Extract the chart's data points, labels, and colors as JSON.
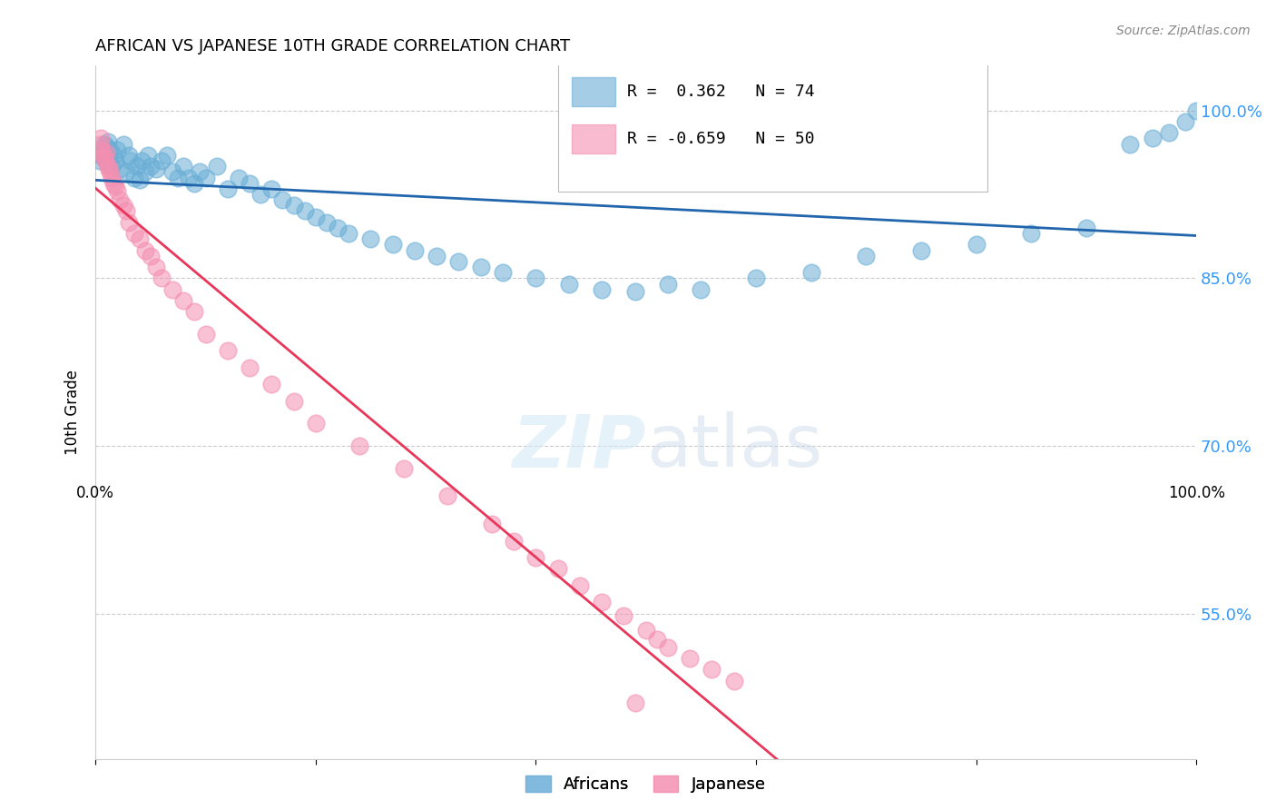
{
  "title": "AFRICAN VS JAPANESE 10TH GRADE CORRELATION CHART",
  "source": "Source: ZipAtlas.com",
  "ylabel": "10th Grade",
  "xlim": [
    0.0,
    1.0
  ],
  "ylim": [
    0.42,
    1.04
  ],
  "yticks": [
    0.55,
    0.7,
    0.85,
    1.0
  ],
  "ytick_labels": [
    "55.0%",
    "70.0%",
    "85.0%",
    "100.0%"
  ],
  "legend_line1": "R =  0.362   N = 74",
  "legend_line2": "R = -0.659   N = 50",
  "legend_labels": [
    "Africans",
    "Japanese"
  ],
  "african_color": "#6aaed6",
  "japanese_color": "#f48fb1",
  "trend_african_color": "#2166ac",
  "trend_japanese_color": "#e8375a",
  "trend_extended_color": "#d0b0c0",
  "watermark_zip": "ZIP",
  "watermark_atlas": "atlas",
  "african_x": [
    0.004,
    0.005,
    0.006,
    0.007,
    0.008,
    0.009,
    0.01,
    0.011,
    0.012,
    0.013,
    0.015,
    0.016,
    0.018,
    0.02,
    0.022,
    0.025,
    0.028,
    0.03,
    0.032,
    0.035,
    0.038,
    0.04,
    0.042,
    0.045,
    0.048,
    0.05,
    0.055,
    0.06,
    0.065,
    0.07,
    0.075,
    0.08,
    0.085,
    0.09,
    0.095,
    0.1,
    0.11,
    0.12,
    0.13,
    0.14,
    0.15,
    0.16,
    0.17,
    0.18,
    0.19,
    0.2,
    0.21,
    0.22,
    0.23,
    0.25,
    0.27,
    0.29,
    0.31,
    0.33,
    0.35,
    0.37,
    0.4,
    0.43,
    0.46,
    0.49,
    0.52,
    0.55,
    0.6,
    0.65,
    0.7,
    0.75,
    0.8,
    0.85,
    0.9,
    0.94,
    0.96,
    0.975,
    0.99,
    1.0
  ],
  "african_y": [
    0.955,
    0.96,
    0.965,
    0.958,
    0.97,
    0.962,
    0.968,
    0.972,
    0.958,
    0.965,
    0.95,
    0.96,
    0.955,
    0.965,
    0.948,
    0.97,
    0.945,
    0.96,
    0.955,
    0.94,
    0.95,
    0.938,
    0.955,
    0.945,
    0.96,
    0.95,
    0.948,
    0.955,
    0.96,
    0.945,
    0.94,
    0.95,
    0.94,
    0.935,
    0.945,
    0.94,
    0.95,
    0.93,
    0.94,
    0.935,
    0.925,
    0.93,
    0.92,
    0.915,
    0.91,
    0.905,
    0.9,
    0.895,
    0.89,
    0.885,
    0.88,
    0.875,
    0.87,
    0.865,
    0.86,
    0.855,
    0.85,
    0.845,
    0.84,
    0.838,
    0.845,
    0.84,
    0.85,
    0.855,
    0.87,
    0.875,
    0.88,
    0.89,
    0.895,
    0.97,
    0.975,
    0.98,
    0.99,
    1.0
  ],
  "japanese_x": [
    0.004,
    0.005,
    0.006,
    0.007,
    0.008,
    0.009,
    0.01,
    0.011,
    0.012,
    0.013,
    0.015,
    0.016,
    0.018,
    0.02,
    0.022,
    0.025,
    0.028,
    0.03,
    0.035,
    0.04,
    0.045,
    0.05,
    0.055,
    0.06,
    0.07,
    0.08,
    0.09,
    0.1,
    0.12,
    0.14,
    0.16,
    0.18,
    0.2,
    0.24,
    0.28,
    0.32,
    0.36,
    0.38,
    0.4,
    0.42,
    0.44,
    0.46,
    0.48,
    0.5,
    0.51,
    0.52,
    0.54,
    0.56,
    0.58,
    0.49
  ],
  "japanese_y": [
    0.97,
    0.975,
    0.965,
    0.96,
    0.958,
    0.955,
    0.962,
    0.95,
    0.948,
    0.945,
    0.94,
    0.935,
    0.932,
    0.928,
    0.92,
    0.915,
    0.91,
    0.9,
    0.89,
    0.885,
    0.875,
    0.87,
    0.86,
    0.85,
    0.84,
    0.83,
    0.82,
    0.8,
    0.785,
    0.77,
    0.755,
    0.74,
    0.72,
    0.7,
    0.68,
    0.655,
    0.63,
    0.615,
    0.6,
    0.59,
    0.575,
    0.56,
    0.548,
    0.535,
    0.527,
    0.52,
    0.51,
    0.5,
    0.49,
    0.47
  ]
}
